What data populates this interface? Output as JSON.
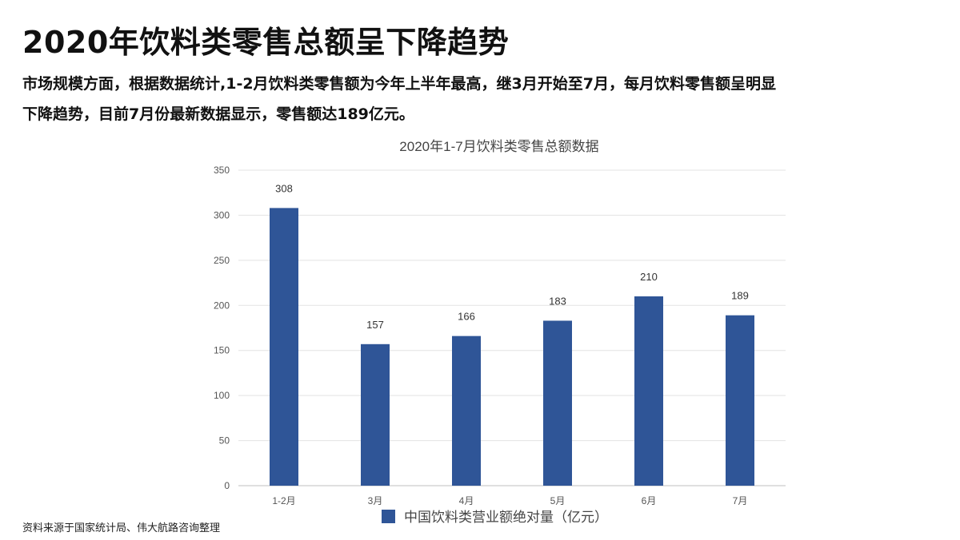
{
  "header": {
    "title": "2020年饮料类零售总额呈下降趋势",
    "intro_line1": "市场规模方面，根据数据统计,1-2月饮料类零售额为今年上半年最高，继3月开始至7月，每月饮料零售额呈明显",
    "intro_line2": "下降趋势，目前7月份最新数据显示，零售额达189亿元。"
  },
  "footer": {
    "source": "资料来源于国家统计局、伟大航路咨询整理"
  },
  "chart_data": {
    "type": "bar",
    "title": "2020年1-7月饮料类零售总额数据",
    "categories": [
      "1-2月",
      "3月",
      "4月",
      "5月",
      "6月",
      "7月"
    ],
    "series": [
      {
        "name": "中国饮料类营业额绝对量（亿元）",
        "values": [
          308,
          157,
          166,
          183,
          210,
          189
        ],
        "color": "#2f5597"
      }
    ],
    "xlabel": "",
    "ylabel": "",
    "ylim": [
      0,
      350
    ],
    "yticks": [
      0,
      50,
      100,
      150,
      200,
      250,
      300,
      350
    ],
    "grid": true,
    "legend": "bottom",
    "data_labels": true
  }
}
